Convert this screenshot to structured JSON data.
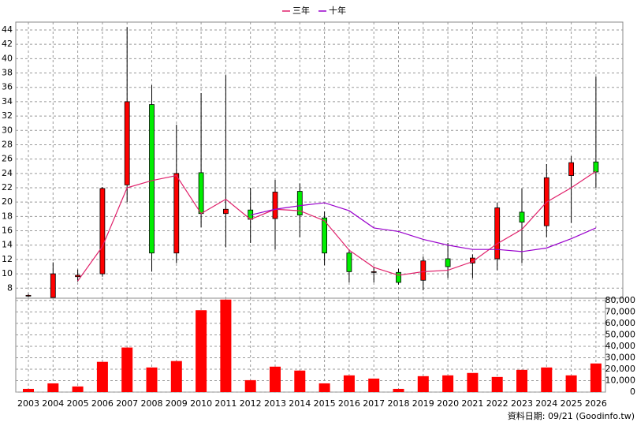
{
  "chart_data": [
    {
      "type": "candlestick",
      "open": [
        6.9,
        6.7,
        9.6,
        10.0,
        22.4,
        33.6,
        12.9,
        24.1,
        18.4,
        18.9,
        17.7,
        21.5,
        17.8,
        12.9,
        10.2,
        10.2,
        9.1,
        12.1,
        11.5,
        12.1,
        18.6,
        16.7,
        23.7,
        25.6
      ],
      "high": [
        7.2,
        11.6,
        10.6,
        22.1,
        44.4,
        36.3,
        30.8,
        35.2,
        37.7,
        22.0,
        23.1,
        22.6,
        18.7,
        13.4,
        11.0,
        10.7,
        12.4,
        14.3,
        12.7,
        19.9,
        21.9,
        25.3,
        26.4,
        37.5
      ],
      "low": [
        6.8,
        6.7,
        8.9,
        9.6,
        20.0,
        10.3,
        11.5,
        16.5,
        13.7,
        14.3,
        13.4,
        15.1,
        11.2,
        8.8,
        8.8,
        8.5,
        7.7,
        9.4,
        9.4,
        10.5,
        11.5,
        15.1,
        17.1,
        22.0
      ],
      "close": [
        7.0,
        10.0,
        9.8,
        21.9,
        34.0,
        12.9,
        24.0,
        18.4,
        19.0,
        17.6,
        21.4,
        18.2,
        12.9,
        10.3,
        10.3,
        8.8,
        11.8,
        11.0,
        12.2,
        19.2,
        17.2,
        23.4,
        25.5,
        24.2
      ],
      "up_color": "#ff0000",
      "down_color": "#00ee00",
      "series": [
        {
          "name": "三年",
          "color": "#e0206a",
          "values": [
            null,
            null,
            9.0,
            13.8,
            22.0,
            23.0,
            23.7,
            18.4,
            20.4,
            17.6,
            19.0,
            18.8,
            17.4,
            13.3,
            10.9,
            9.8,
            10.3,
            10.5,
            11.7,
            14.2,
            16.2,
            20.0,
            22.0,
            24.3
          ]
        },
        {
          "name": "十年",
          "color": "#9900cc",
          "values": [
            null,
            null,
            null,
            null,
            null,
            null,
            null,
            null,
            null,
            18.2,
            19.0,
            19.5,
            19.9,
            18.8,
            16.4,
            15.9,
            14.8,
            14.0,
            13.4,
            13.4,
            13.1,
            13.6,
            14.9,
            16.4
          ]
        }
      ],
      "ylim": [
        6.6,
        45.1
      ],
      "yticks": [
        8,
        10,
        12,
        14,
        16,
        18,
        20,
        22,
        24,
        26,
        28,
        30,
        32,
        34,
        36,
        38,
        40,
        42,
        44
      ],
      "grid": true
    },
    {
      "type": "bar",
      "categories": [
        "2003",
        "2004",
        "2005",
        "2006",
        "2007",
        "2008",
        "2009",
        "2010",
        "2011",
        "2012",
        "2013",
        "2014",
        "2015",
        "2016",
        "2017",
        "2018",
        "2019",
        "2020",
        "2021",
        "2022",
        "2023",
        "2024",
        "2025",
        "2026"
      ],
      "values": [
        2800,
        7600,
        4900,
        26400,
        38900,
        21500,
        27100,
        71500,
        80800,
        10400,
        22200,
        18800,
        7600,
        14600,
        11800,
        2800,
        13900,
        14600,
        16700,
        13200,
        19400,
        21500,
        14600,
        25000
      ],
      "color": "#ff0000",
      "ylim": [
        0,
        82000
      ],
      "yticks": [
        0,
        {
          "value": 10000,
          "label": "10,000"
        },
        {
          "value": 20000,
          "label": "20,000"
        },
        {
          "value": 30000,
          "label": "30,000"
        },
        {
          "value": 40000,
          "label": "40,000"
        },
        {
          "value": 50000,
          "label": "50,000"
        },
        {
          "value": 60000,
          "label": "60,000"
        },
        {
          "value": 70000,
          "label": "70,000"
        },
        {
          "value": 80000,
          "label": "80,000"
        }
      ],
      "grid": true,
      "footnote": "資料日期: 09/21 (Goodinfo.tw)"
    }
  ]
}
